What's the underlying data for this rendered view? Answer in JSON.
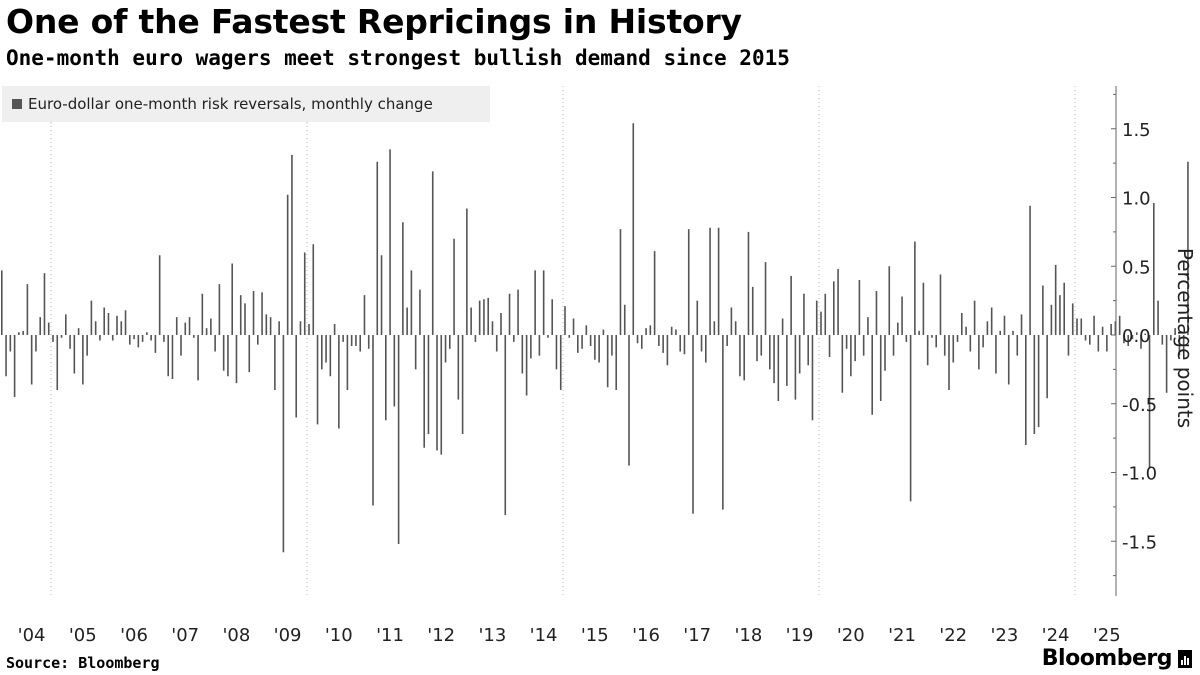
{
  "header": {
    "title": "One of the Fastest Repricings in History",
    "subtitle": "One-month euro wagers meet strongest bullish demand since 2015"
  },
  "footer": {
    "source": "Source: Bloomberg",
    "brand": "Bloomberg"
  },
  "colors": {
    "bar": "#555555",
    "grid": "#bbbbbb",
    "legend_bg": "#efefef"
  },
  "chart_data": {
    "type": "bar",
    "title": "One of the Fastest Repricings in History",
    "subtitle": "One-month euro wagers meet strongest bullish demand since 2015",
    "series": [
      {
        "name": "Euro-dollar one-month risk reversals, monthly change",
        "start": "2004-01",
        "frequency": "monthly",
        "values": [
          0.47,
          -0.3,
          -0.12,
          -0.45,
          0.02,
          0.03,
          0.37,
          -0.36,
          -0.12,
          0.13,
          0.45,
          0.09,
          -0.05,
          -0.4,
          -0.02,
          0.15,
          -0.1,
          -0.28,
          0.05,
          -0.36,
          -0.15,
          0.25,
          0.1,
          -0.04,
          0.2,
          0.16,
          -0.04,
          0.14,
          0.1,
          0.18,
          -0.07,
          -0.03,
          -0.09,
          -0.05,
          0.02,
          -0.04,
          -0.13,
          0.58,
          -0.05,
          -0.3,
          -0.32,
          0.13,
          -0.15,
          0.09,
          0.13,
          -0.02,
          -0.33,
          0.3,
          0.05,
          0.12,
          -0.12,
          0.37,
          -0.26,
          -0.3,
          0.52,
          -0.35,
          0.29,
          0.23,
          -0.27,
          0.32,
          -0.07,
          0.31,
          0.15,
          0.13,
          -0.4,
          0.1,
          -1.58,
          1.02,
          1.31,
          -0.6,
          0.1,
          0.6,
          0.08,
          0.66,
          -0.65,
          -0.25,
          -0.2,
          -0.3,
          0.08,
          -0.68,
          -0.05,
          -0.4,
          -0.08,
          -0.08,
          -0.12,
          0.29,
          -0.1,
          -1.24,
          1.26,
          0.58,
          -0.62,
          1.35,
          -0.52,
          -1.52,
          0.82,
          0.2,
          0.47,
          -0.25,
          0.33,
          -0.82,
          -0.72,
          1.19,
          -0.84,
          -0.87,
          -0.2,
          -0.1,
          0.7,
          -0.47,
          -0.72,
          0.92,
          0.2,
          -0.05,
          0.25,
          0.26,
          0.27,
          0.1,
          -0.12,
          0.16,
          -1.31,
          0.3,
          -0.05,
          0.33,
          -0.28,
          -0.44,
          -0.17,
          0.47,
          -0.15,
          0.47,
          -0.02,
          0.26,
          -0.25,
          -0.4,
          0.21,
          -0.02,
          0.12,
          -0.13,
          -0.1,
          0.07,
          -0.08,
          -0.18,
          -0.2,
          0.04,
          -0.38,
          -0.15,
          -0.4,
          0.77,
          0.22,
          -0.95,
          1.54,
          -0.06,
          -0.1,
          0.05,
          0.07,
          0.61,
          -0.08,
          -0.13,
          -0.22,
          0.06,
          0.04,
          -0.12,
          -0.14,
          0.77,
          -1.3,
          0.25,
          -0.12,
          -0.2,
          0.78,
          0.1,
          0.78,
          -1.27,
          -0.08,
          0.2,
          0.1,
          -0.3,
          -0.33,
          0.75,
          0.35,
          -0.19,
          -0.15,
          0.53,
          -0.25,
          -0.35,
          -0.48,
          0.12,
          -0.37,
          0.43,
          -0.47,
          -0.28,
          0.3,
          -0.22,
          -0.62,
          0.25,
          0.17,
          0.3,
          -0.16,
          0.39,
          0.48,
          -0.42,
          -0.1,
          -0.3,
          -0.19,
          0.4,
          -0.15,
          0.13,
          -0.58,
          0.32,
          -0.48,
          -0.26,
          0.5,
          -0.15,
          0.09,
          0.28,
          -0.05,
          -1.21,
          0.68,
          0.03,
          0.38,
          -0.22,
          -0.02,
          -0.09,
          0.44,
          -0.15,
          -0.4,
          -0.2,
          -0.05,
          0.16,
          0.06,
          -0.12,
          0.25,
          -0.25,
          -0.09,
          0.1,
          0.2,
          -0.28,
          0.03,
          0.14,
          -0.36,
          0.03,
          -0.15,
          0.15,
          -0.8,
          0.94,
          -0.72,
          -0.67,
          0.36,
          -0.46,
          0.22,
          0.51,
          0.29,
          0.38,
          -0.15,
          0.23,
          0.12,
          0.12,
          -0.04,
          -0.07,
          0.14,
          -0.12,
          0.06,
          -0.12,
          0.08,
          0.1,
          0.14,
          -0.06,
          -0.08,
          -0.03,
          0.02,
          -0.1,
          0.01,
          -0.97,
          0.96,
          0.25,
          -0.07,
          -0.42,
          -0.04,
          0.05,
          -0.15,
          -0.13,
          1.26
        ]
      }
    ],
    "ylabel": "Percentage points",
    "ylim": [
      -1.85,
      1.85
    ],
    "yticks": [
      1.5,
      1.0,
      0.5,
      0.0,
      -0.5,
      -1.0,
      -1.5
    ],
    "ytick_labels": [
      "1.5",
      "1.0",
      "0.5",
      "0.0",
      "-0.5",
      "-1.0",
      "-1.5"
    ],
    "xlim": [
      "2004-01",
      "2025-04"
    ],
    "xticks": [
      "2004",
      "2005",
      "2006",
      "2007",
      "2008",
      "2009",
      "2010",
      "2011",
      "2012",
      "2013",
      "2014",
      "2015",
      "2016",
      "2017",
      "2018",
      "2019",
      "2020",
      "2021",
      "2022",
      "2023",
      "2024",
      "2025"
    ],
    "xtick_labels": [
      "'04",
      "'05",
      "'06",
      "'07",
      "'08",
      "'09",
      "'10",
      "'11",
      "'12",
      "'13",
      "'14",
      "'15",
      "'16",
      "'17",
      "'18",
      "'19",
      "'20",
      "'21",
      "'22",
      "'23",
      "'24",
      "'25"
    ],
    "y_axis_position": "right",
    "grid": "vertical dotted at 2004, 2009, 2014, 2019, 2024",
    "legend_position": "top-left"
  }
}
